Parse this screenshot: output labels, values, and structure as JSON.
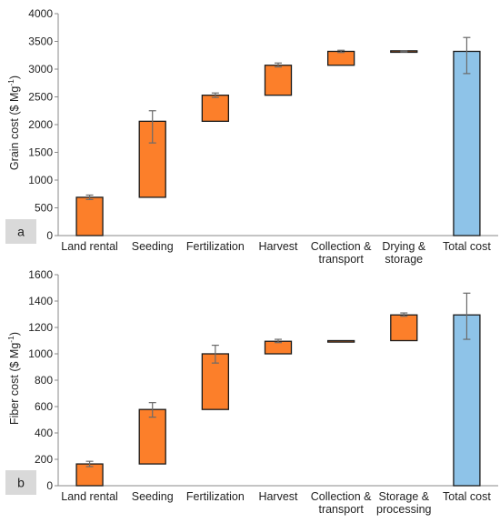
{
  "colors": {
    "step": "#fc7f2a",
    "total": "#8ec3e8",
    "outline": "#1a1a1a",
    "error": "#6a6a6a",
    "tag_bg": "#d9d9d9"
  },
  "chart_data": [
    {
      "type": "bar",
      "subtype": "waterfall",
      "panel_label": "a",
      "ylabel_main": "Grain cost ($ Mg",
      "ylabel_sup": "-1",
      "ylabel_end": ")",
      "ylim": [
        0,
        4000
      ],
      "yticks": [
        "0",
        "500",
        "1000",
        "1500",
        "2000",
        "2500",
        "3000",
        "3500",
        "4000"
      ],
      "grid": false,
      "categories": [
        [
          "Land rental"
        ],
        [
          "Seeding"
        ],
        [
          "Fertilization"
        ],
        [
          "Harvest"
        ],
        [
          "Collection &",
          "transport"
        ],
        [
          "Drying &",
          "storage"
        ],
        [
          "Total cost"
        ]
      ],
      "bars": [
        {
          "start": 0,
          "end": 690,
          "err_low": 650,
          "err_high": 730,
          "total": false
        },
        {
          "start": 690,
          "end": 2060,
          "err_low": 1670,
          "err_high": 2250,
          "total": false
        },
        {
          "start": 2060,
          "end": 2530,
          "err_low": 2490,
          "err_high": 2570,
          "total": false
        },
        {
          "start": 2530,
          "end": 3070,
          "err_low": 3040,
          "err_high": 3110,
          "total": false
        },
        {
          "start": 3070,
          "end": 3320,
          "err_low": 3300,
          "err_high": 3340,
          "total": false
        },
        {
          "start": 3310,
          "end": 3330,
          "err_low": 3310,
          "err_high": 3330,
          "total": false
        },
        {
          "start": 0,
          "end": 3320,
          "err_low": 2920,
          "err_high": 3570,
          "total": true
        }
      ]
    },
    {
      "type": "bar",
      "subtype": "waterfall",
      "panel_label": "b",
      "ylabel_main": "Fiber cost ($ Mg",
      "ylabel_sup": "-1",
      "ylabel_end": ")",
      "ylim": [
        0,
        1600
      ],
      "yticks": [
        "0",
        "200",
        "400",
        "600",
        "800",
        "1000",
        "1200",
        "1400",
        "1600"
      ],
      "grid": false,
      "categories": [
        [
          "Land rental"
        ],
        [
          "Seeding"
        ],
        [
          "Fertilization"
        ],
        [
          "Harvest"
        ],
        [
          "Collection &",
          "transport"
        ],
        [
          "Storage &",
          "processing"
        ],
        [
          "Total cost"
        ]
      ],
      "bars": [
        {
          "start": 0,
          "end": 165,
          "err_low": 145,
          "err_high": 185,
          "total": false
        },
        {
          "start": 165,
          "end": 578,
          "err_low": 520,
          "err_high": 630,
          "total": false
        },
        {
          "start": 578,
          "end": 1000,
          "err_low": 930,
          "err_high": 1065,
          "total": false
        },
        {
          "start": 1000,
          "end": 1095,
          "err_low": 1085,
          "err_high": 1110,
          "total": false
        },
        {
          "start": 1095,
          "end": 1100,
          "err_low": 1095,
          "err_high": 1100,
          "total": false
        },
        {
          "start": 1100,
          "end": 1295,
          "err_low": 1285,
          "err_high": 1310,
          "total": false
        },
        {
          "start": 0,
          "end": 1295,
          "err_low": 1110,
          "err_high": 1460,
          "total": true
        }
      ]
    }
  ]
}
